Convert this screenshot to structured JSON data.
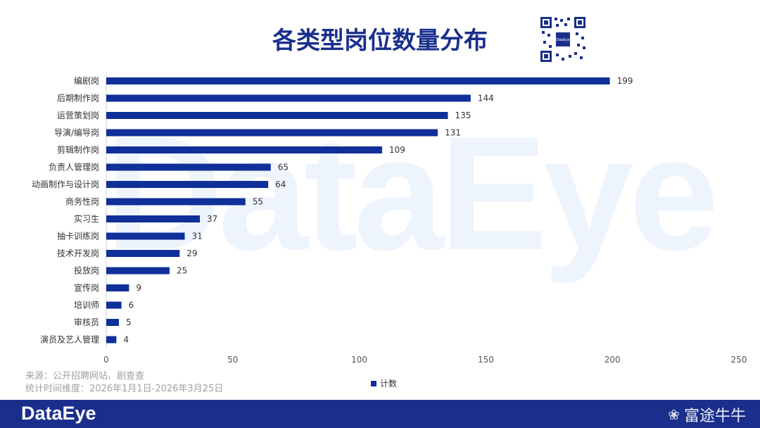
{
  "title": "各类型岗位数量分布",
  "source": {
    "line1": "来源：公开招聘网站、剧查查",
    "line2": "统计时间维度：2026年1月1日-2026年3月25日"
  },
  "watermark": "DataEye",
  "qr_label": "DataEye",
  "footer": {
    "logo": "DataEye",
    "brand2": "富途牛牛"
  },
  "colors": {
    "bar": "#0f2f99",
    "title": "#1a2f8c",
    "footer_bg": "#1a2f8c"
  },
  "chart_data": {
    "type": "bar",
    "orientation": "horizontal",
    "categories": [
      "编剧岗",
      "后期制作岗",
      "运营策划岗",
      "导演/编导岗",
      "剪辑制作岗",
      "负责人管理岗",
      "动画制作与设计岗",
      "商务性岗",
      "实习生",
      "抽卡训练岗",
      "技术开发岗",
      "投放岗",
      "宣传岗",
      "培训师",
      "审核员",
      "演员及艺人管理"
    ],
    "series": [
      {
        "name": "计数",
        "values": [
          199,
          144,
          135,
          131,
          109,
          65,
          64,
          55,
          37,
          31,
          29,
          25,
          9,
          6,
          5,
          4
        ]
      }
    ],
    "xlim": [
      0,
      250
    ],
    "xticks": [
      0,
      50,
      100,
      150,
      200,
      250
    ],
    "grid": false,
    "legend": "bottom"
  }
}
